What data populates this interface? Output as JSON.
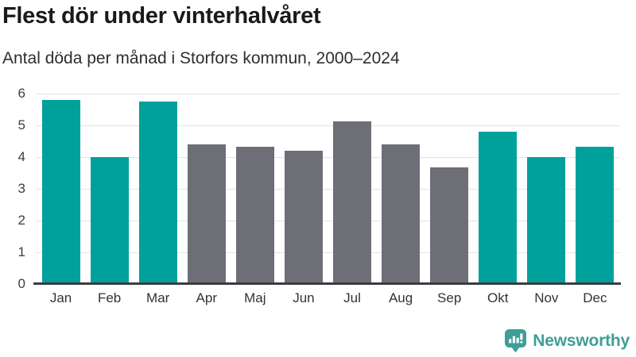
{
  "header": {
    "title": "Flest dör under vinterhalvåret",
    "subtitle": "Antal döda per månad i Storfors kommun, 2000–2024"
  },
  "chart_data": {
    "type": "bar",
    "title": "Flest dör under vinterhalvåret",
    "subtitle": "Antal döda per månad i Storfors kommun, 2000–2024",
    "categories": [
      "Jan",
      "Feb",
      "Mar",
      "Apr",
      "Maj",
      "Jun",
      "Jul",
      "Aug",
      "Sep",
      "Okt",
      "Nov",
      "Dec"
    ],
    "values": [
      5.8,
      4.0,
      5.75,
      4.4,
      4.33,
      4.2,
      5.12,
      4.4,
      3.68,
      4.8,
      4.0,
      4.33
    ],
    "bar_colors": [
      "teal",
      "teal",
      "teal",
      "gray",
      "gray",
      "gray",
      "gray",
      "gray",
      "gray",
      "teal",
      "teal",
      "teal"
    ],
    "palette": {
      "teal": "#00a19a",
      "gray": "#6e6e77"
    },
    "xlabel": "",
    "ylabel": "",
    "ylim": [
      0,
      6
    ],
    "yticks": [
      0,
      1,
      2,
      3,
      4,
      5,
      6
    ],
    "grid": true,
    "legend": false,
    "gridline_color": "#e4e4e4",
    "axis_line_color": "#3b3b40"
  },
  "footer": {
    "brand": "Newsworthy",
    "brand_color": "#3f9e98"
  }
}
